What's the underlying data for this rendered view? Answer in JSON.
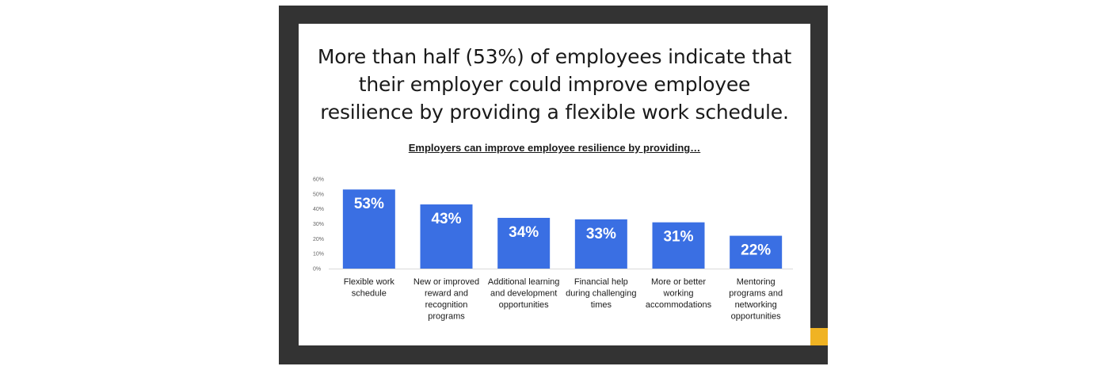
{
  "headline": {
    "lines": [
      "More than half (53%) of employees indicate that",
      "their employer could improve employee",
      "resilience by providing a flexible work schedule."
    ]
  },
  "colors": {
    "frame": "#333333",
    "accent": "#f0b323",
    "bar": "#3a6fe3"
  },
  "chart_data": {
    "type": "bar",
    "title": "Employers can improve employee resilience by providing…",
    "xlabel": "",
    "ylabel": "",
    "ylim": [
      0,
      60
    ],
    "yticks": [
      "0%",
      "10%",
      "20%",
      "30%",
      "40%",
      "50%",
      "60%"
    ],
    "categories": [
      [
        "Flexible work",
        "schedule"
      ],
      [
        "New or improved",
        "reward and",
        "recognition",
        "programs"
      ],
      [
        "Additional learning",
        "and development",
        "opportunities"
      ],
      [
        "Financial help",
        "during challenging",
        "times"
      ],
      [
        "More or better",
        "working",
        "accommodations"
      ],
      [
        "Mentoring",
        "programs and",
        "networking",
        "opportunities"
      ]
    ],
    "values": [
      53,
      43,
      34,
      33,
      31,
      22
    ],
    "value_labels": [
      "53%",
      "43%",
      "34%",
      "33%",
      "31%",
      "22%"
    ],
    "grid": false,
    "legend": "none"
  }
}
